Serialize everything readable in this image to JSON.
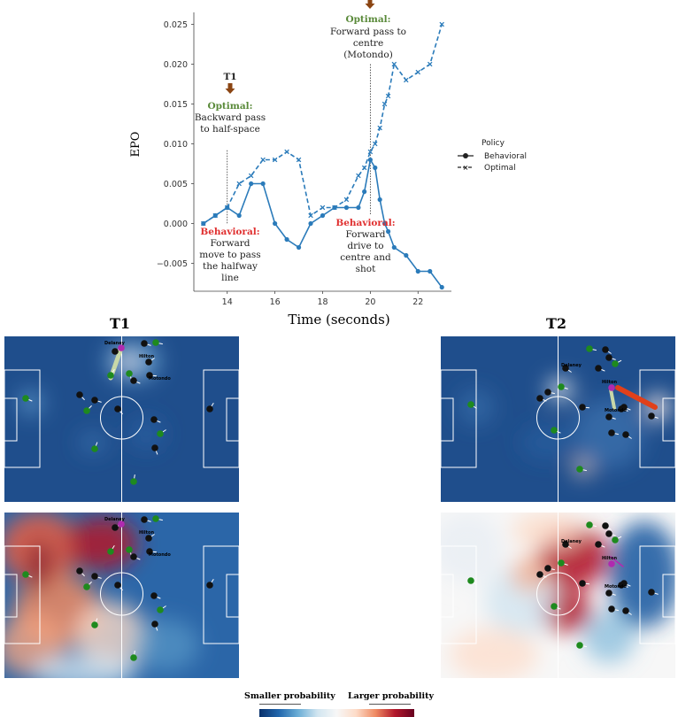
{
  "chart_data": {
    "type": "line",
    "title": "",
    "xlabel": "Time (seconds)",
    "ylabel": "EPO",
    "xlim": [
      12.6,
      23.4
    ],
    "ylim": [
      -0.0085,
      0.0265
    ],
    "xticks": [
      "14",
      "16",
      "18",
      "20",
      "22"
    ],
    "yticks": [
      "0.025",
      "0.020",
      "0.015",
      "0.010",
      "0.005",
      "0.000",
      "−0.005"
    ],
    "legend": {
      "title": "Policy",
      "entries": [
        "Behavioral",
        "Optimal"
      ],
      "placement": "right"
    },
    "series": [
      {
        "name": "Behavioral",
        "style": "solid-circle",
        "color": "#2b7bba",
        "points": [
          [
            13.0,
            0.0
          ],
          [
            13.5,
            0.001
          ],
          [
            14.0,
            0.002
          ],
          [
            14.5,
            0.001
          ],
          [
            15.0,
            0.005
          ],
          [
            15.5,
            0.005
          ],
          [
            16.0,
            0.0
          ],
          [
            16.5,
            -0.002
          ],
          [
            17.0,
            -0.003
          ],
          [
            17.5,
            0.0
          ],
          [
            18.0,
            0.001
          ],
          [
            18.5,
            0.002
          ],
          [
            19.0,
            0.002
          ],
          [
            19.5,
            0.002
          ],
          [
            19.75,
            0.004
          ],
          [
            20.0,
            0.008
          ],
          [
            20.2,
            0.007
          ],
          [
            20.4,
            0.003
          ],
          [
            20.6,
            0.0
          ],
          [
            20.75,
            -0.001
          ],
          [
            21.0,
            -0.003
          ],
          [
            21.5,
            -0.004
          ],
          [
            22.0,
            -0.006
          ],
          [
            22.5,
            -0.006
          ],
          [
            23.0,
            -0.008
          ]
        ]
      },
      {
        "name": "Optimal",
        "style": "dashed-cross",
        "color": "#2b7bba",
        "points": [
          [
            13.0,
            0.0
          ],
          [
            13.5,
            0.001
          ],
          [
            14.0,
            0.002
          ],
          [
            14.5,
            0.005
          ],
          [
            15.0,
            0.006
          ],
          [
            15.5,
            0.008
          ],
          [
            16.0,
            0.008
          ],
          [
            16.5,
            0.009
          ],
          [
            17.0,
            0.008
          ],
          [
            17.5,
            0.001
          ],
          [
            18.0,
            0.002
          ],
          [
            18.5,
            0.002
          ],
          [
            19.0,
            0.003
          ],
          [
            19.5,
            0.006
          ],
          [
            19.75,
            0.007
          ],
          [
            20.0,
            0.009
          ],
          [
            20.2,
            0.01
          ],
          [
            20.4,
            0.012
          ],
          [
            20.6,
            0.015
          ],
          [
            20.75,
            0.016
          ],
          [
            21.0,
            0.02
          ],
          [
            21.5,
            0.018
          ],
          [
            22.0,
            0.019
          ],
          [
            22.5,
            0.02
          ],
          [
            23.0,
            0.025
          ]
        ]
      }
    ],
    "markers": [
      {
        "time": 14.0,
        "title": "T1",
        "optimal_label": "Optimal:",
        "optimal_text": [
          "Backward pass",
          "to half-space"
        ],
        "behavioral_label": "Behavioral:",
        "behavioral_text": [
          "Forward",
          "move to pass",
          "the halfway",
          "line"
        ]
      },
      {
        "time": 20.0,
        "title": "",
        "optimal_label": "Optimal:",
        "optimal_text": [
          "Forward pass to",
          "centre",
          "(Motondo)"
        ],
        "behavioral_label": "Behavioral:",
        "behavioral_text": [
          "Forward",
          "drive to",
          "centre and",
          "shot"
        ]
      }
    ],
    "colors": {
      "arrow": "#8b4513",
      "optimal": "#5a8a3a",
      "behavioral": "#e03030"
    }
  },
  "panels": {
    "t1_title": "T1",
    "t2_title": "T2",
    "player_labels": {
      "t1": [
        "Delaney",
        "Hilton",
        "Motondo"
      ],
      "t2": [
        "Delaney",
        "Motondo",
        "Hilton"
      ]
    }
  },
  "colorbar": {
    "left_label": "Smaller probability",
    "right_label": "Larger probability"
  }
}
